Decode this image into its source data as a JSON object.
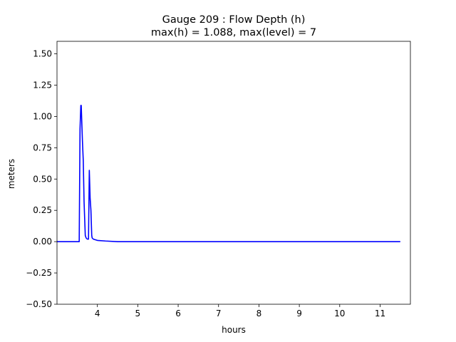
{
  "chart_data": {
    "type": "line",
    "title_lines": [
      "Gauge 209 : Flow Depth (h)",
      "max(h) =   1.088,    max(level) = 7"
    ],
    "xlabel": "hours",
    "ylabel": "meters",
    "xlim": [
      3.0,
      11.75
    ],
    "ylim": [
      -0.5,
      1.6
    ],
    "x_ticks": [
      4,
      5,
      6,
      7,
      8,
      9,
      10,
      11
    ],
    "y_ticks": [
      -0.5,
      -0.25,
      0.0,
      0.25,
      0.5,
      0.75,
      1.0,
      1.25,
      1.5
    ],
    "y_tick_labels": [
      "−0.50",
      "−0.25",
      "0.00",
      "0.25",
      "0.50",
      "0.75",
      "1.00",
      "1.25",
      "1.50"
    ],
    "grid": false,
    "series": [
      {
        "color": "#0000ff",
        "x": [
          3.0,
          3.55,
          3.57,
          3.59,
          3.6,
          3.61,
          3.63,
          3.65,
          3.67,
          3.7,
          3.72,
          3.75,
          3.78,
          3.8,
          3.82,
          3.84,
          3.86,
          3.87,
          3.9,
          3.95,
          4.0,
          4.2,
          4.5,
          11.5
        ],
        "y": [
          0.0,
          0.0,
          0.9,
          1.088,
          1.088,
          0.99,
          0.8,
          0.65,
          0.32,
          0.05,
          0.03,
          0.02,
          0.02,
          0.57,
          0.35,
          0.25,
          0.05,
          0.03,
          0.02,
          0.015,
          0.01,
          0.005,
          0.0,
          0.0
        ]
      }
    ]
  }
}
